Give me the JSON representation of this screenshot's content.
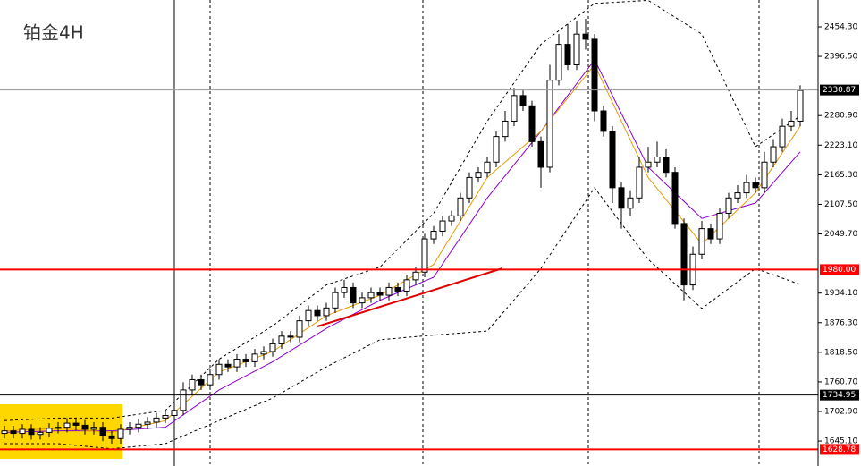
{
  "chart_data": {
    "type": "candlestick",
    "title": "铂金4H",
    "ylim": [
      1596.3,
      2506.7
    ],
    "yticks": [
      {
        "value": 2454.3,
        "label": "2454.30"
      },
      {
        "value": 2396.5,
        "label": "2396.50"
      },
      {
        "value": 2280.9,
        "label": "2280.90"
      },
      {
        "value": 2223.1,
        "label": "2223.10"
      },
      {
        "value": 2165.3,
        "label": "2165.30"
      },
      {
        "value": 2107.5,
        "label": "2107.50"
      },
      {
        "value": 2049.7,
        "label": "2049.70"
      },
      {
        "value": 1934.1,
        "label": "1934.10"
      },
      {
        "value": 1876.3,
        "label": "1876.30"
      },
      {
        "value": 1818.5,
        "label": "1818.50"
      },
      {
        "value": 1760.7,
        "label": "1760.70"
      },
      {
        "value": 1702.9,
        "label": "1702.90"
      },
      {
        "value": 1645.1,
        "label": "1645.10"
      }
    ],
    "levels": [
      {
        "value": 2330.87,
        "label": "2330.87",
        "color": "#9a9a9a"
      },
      {
        "value": 1980,
        "label": "1980.00",
        "color": "#ff0000"
      },
      {
        "value": 1734.95,
        "label": "1734.95",
        "color": "#000000"
      },
      {
        "value": 1628.78,
        "label": "1628.78",
        "color": "#ff0000"
      }
    ],
    "candles": {
      "open": [
        1660,
        1665,
        1660,
        1668,
        1658,
        1662,
        1670,
        1672,
        1680,
        1676,
        1668,
        1672,
        1655,
        1650,
        1668,
        1672,
        1678,
        1682,
        1690,
        1695,
        1705,
        1745,
        1765,
        1755,
        1775,
        1795,
        1790,
        1805,
        1800,
        1815,
        1820,
        1835,
        1850,
        1848,
        1880,
        1900,
        1890,
        1905,
        1935,
        1945,
        1915,
        1925,
        1935,
        1930,
        1945,
        1938,
        1960,
        1975,
        2040,
        2055,
        2075,
        2085,
        2120,
        2160,
        2170,
        2190,
        2240,
        2270,
        2320,
        2300,
        2230,
        2180,
        2350,
        2420,
        2380,
        2440,
        2430,
        2290,
        2250,
        2140,
        2100,
        2120,
        2180,
        2190,
        2200,
        2170,
        2070,
        1950,
        2010,
        2060,
        2040,
        2090,
        2120,
        2130,
        2150,
        2140,
        2190,
        2220,
        2260,
        2270
      ],
      "high": [
        1675,
        1675,
        1678,
        1678,
        1672,
        1680,
        1682,
        1690,
        1690,
        1686,
        1682,
        1682,
        1665,
        1678,
        1682,
        1688,
        1692,
        1700,
        1705,
        1715,
        1760,
        1775,
        1775,
        1785,
        1805,
        1805,
        1815,
        1815,
        1825,
        1830,
        1845,
        1860,
        1860,
        1890,
        1910,
        1910,
        1915,
        1945,
        1960,
        1955,
        1935,
        1945,
        1945,
        1955,
        1955,
        1970,
        1985,
        2050,
        2065,
        2085,
        2095,
        2130,
        2170,
        2180,
        2200,
        2250,
        2290,
        2335,
        2330,
        2310,
        2240,
        2380,
        2440,
        2460,
        2465,
        2470,
        2440,
        2300,
        2260,
        2150,
        2135,
        2200,
        2220,
        2230,
        2215,
        2180,
        2080,
        2025,
        2075,
        2070,
        2100,
        2130,
        2145,
        2165,
        2160,
        2210,
        2235,
        2275,
        2290,
        2340
      ],
      "low": [
        1650,
        1650,
        1650,
        1648,
        1648,
        1652,
        1660,
        1662,
        1666,
        1658,
        1658,
        1645,
        1640,
        1640,
        1658,
        1662,
        1668,
        1672,
        1680,
        1685,
        1695,
        1735,
        1745,
        1745,
        1765,
        1780,
        1780,
        1790,
        1790,
        1805,
        1810,
        1825,
        1838,
        1838,
        1870,
        1880,
        1880,
        1895,
        1925,
        1905,
        1905,
        1915,
        1920,
        1920,
        1928,
        1928,
        1950,
        1965,
        2030,
        2045,
        2065,
        2075,
        2110,
        2150,
        2160,
        2180,
        2230,
        2260,
        2290,
        2220,
        2140,
        2170,
        2340,
        2370,
        2370,
        2410,
        2270,
        2240,
        2110,
        2060,
        2085,
        2110,
        2170,
        2180,
        2160,
        2060,
        1920,
        1940,
        2000,
        2030,
        2030,
        2080,
        2110,
        2120,
        2130,
        2130,
        2180,
        2210,
        2250,
        2260
      ],
      "close": [
        1665,
        1660,
        1668,
        1658,
        1662,
        1670,
        1672,
        1680,
        1676,
        1668,
        1672,
        1655,
        1650,
        1668,
        1672,
        1678,
        1682,
        1690,
        1695,
        1705,
        1745,
        1765,
        1755,
        1775,
        1795,
        1790,
        1805,
        1800,
        1815,
        1820,
        1835,
        1850,
        1848,
        1880,
        1900,
        1890,
        1905,
        1935,
        1945,
        1915,
        1925,
        1935,
        1930,
        1945,
        1938,
        1960,
        1975,
        2040,
        2055,
        2075,
        2085,
        2120,
        2160,
        2170,
        2190,
        2240,
        2270,
        2320,
        2300,
        2230,
        2180,
        2350,
        2420,
        2380,
        2440,
        2430,
        2290,
        2250,
        2140,
        2100,
        2120,
        2180,
        2190,
        2200,
        2170,
        2070,
        1950,
        2010,
        2060,
        2040,
        2090,
        2120,
        2130,
        2150,
        2140,
        2190,
        2220,
        2260,
        2270,
        2330
      ]
    },
    "lines": [
      {
        "color": "#000000",
        "dash": true,
        "x": [
          0,
          6,
          12,
          18,
          24,
          30,
          36,
          42,
          48,
          54,
          60,
          66,
          72,
          78,
          84,
          89
        ],
        "values": [
          1685,
          1690,
          1690,
          1705,
          1805,
          1870,
          1950,
          1985,
          2090,
          2270,
          2420,
          2500,
          2506,
          2440,
          2220,
          2280
        ]
      },
      {
        "color": "#000000",
        "dash": true,
        "x": [
          0,
          6,
          12,
          18,
          24,
          30,
          36,
          42,
          48,
          54,
          60,
          66,
          72,
          78,
          84,
          89
        ],
        "values": [
          1640,
          1640,
          1630,
          1640,
          1685,
          1729,
          1790,
          1843,
          1852,
          1860,
          1982,
          2140,
          2000,
          1904,
          1982,
          1951
        ]
      },
      {
        "color": "#8b00d0",
        "dash": false,
        "x": [
          0,
          6,
          12,
          18,
          24,
          30,
          36,
          42,
          48,
          54,
          60,
          66,
          72,
          78,
          84,
          89
        ],
        "values": [
          1662,
          1665,
          1665,
          1672,
          1745,
          1800,
          1865,
          1920,
          1965,
          2120,
          2250,
          2390,
          2180,
          2080,
          2110,
          2210
        ]
      },
      {
        "color": "#e69a00",
        "dash": false,
        "x": [
          0,
          6,
          12,
          18,
          24,
          30,
          36,
          42,
          48,
          54,
          60,
          66,
          72,
          78,
          84,
          89
        ],
        "values": [
          1665,
          1670,
          1662,
          1685,
          1780,
          1820,
          1890,
          1930,
          1990,
          2160,
          2250,
          2380,
          2160,
          2030,
          2130,
          2260
        ]
      }
    ]
  }
}
